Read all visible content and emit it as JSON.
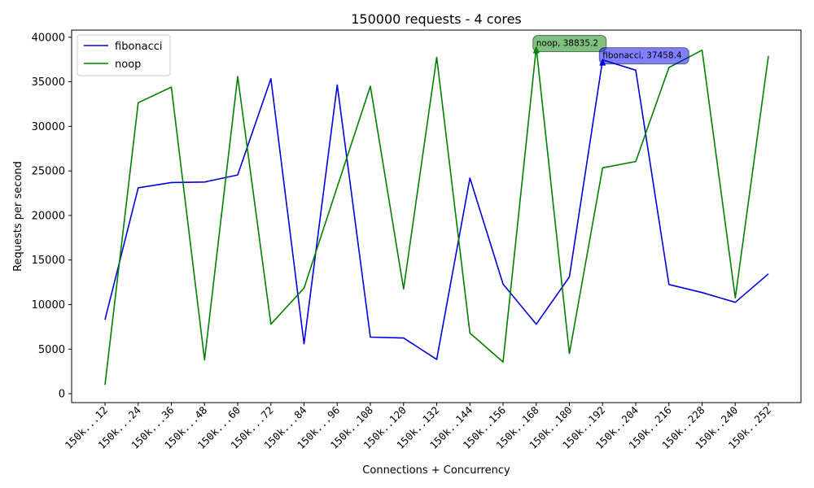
{
  "chart_data": {
    "type": "line",
    "title": "150000 requests - 4 cores",
    "xlabel": "Connections + Concurrency",
    "ylabel": "Requests per second",
    "ylim": [
      -1000,
      40800
    ],
    "yticks": [
      0,
      5000,
      10000,
      15000,
      20000,
      25000,
      30000,
      35000,
      40000
    ],
    "categories": [
      "150k...12",
      "150k...24",
      "150k...36",
      "150k...48",
      "150k...60",
      "150k...72",
      "150k...84",
      "150k...96",
      "150k..108",
      "150k..120",
      "150k..132",
      "150k..144",
      "150k..156",
      "150k..168",
      "150k..180",
      "150k..192",
      "150k..204",
      "150k..216",
      "150k..228",
      "150k..240",
      "150k..252"
    ],
    "series": [
      {
        "name": "fibonacci",
        "color": "#0000dd",
        "values": [
          8300,
          23100,
          23700,
          23750,
          24550,
          35350,
          5600,
          34650,
          6350,
          6250,
          3850,
          24200,
          12300,
          7800,
          13100,
          37458.4,
          36300,
          12250,
          11350,
          10250,
          13450
        ]
      },
      {
        "name": "noop",
        "color": "#008000",
        "values": [
          1000,
          32650,
          34400,
          3800,
          35600,
          7800,
          11850,
          23200,
          34500,
          11750,
          37750,
          6800,
          3550,
          38835.2,
          4500,
          25350,
          26050,
          36600,
          38550,
          10750,
          37900
        ]
      }
    ],
    "legend": {
      "placement": "top-left",
      "entries": [
        "fibonacci",
        "noop"
      ]
    },
    "annotations": [
      {
        "text": "noop, 38835.2",
        "series": "noop",
        "index": 13,
        "color": "#008000"
      },
      {
        "text": "fibonacci, 37458.4",
        "series": "fibonacci",
        "index": 15,
        "color": "#0000ff"
      }
    ],
    "grid": false
  }
}
